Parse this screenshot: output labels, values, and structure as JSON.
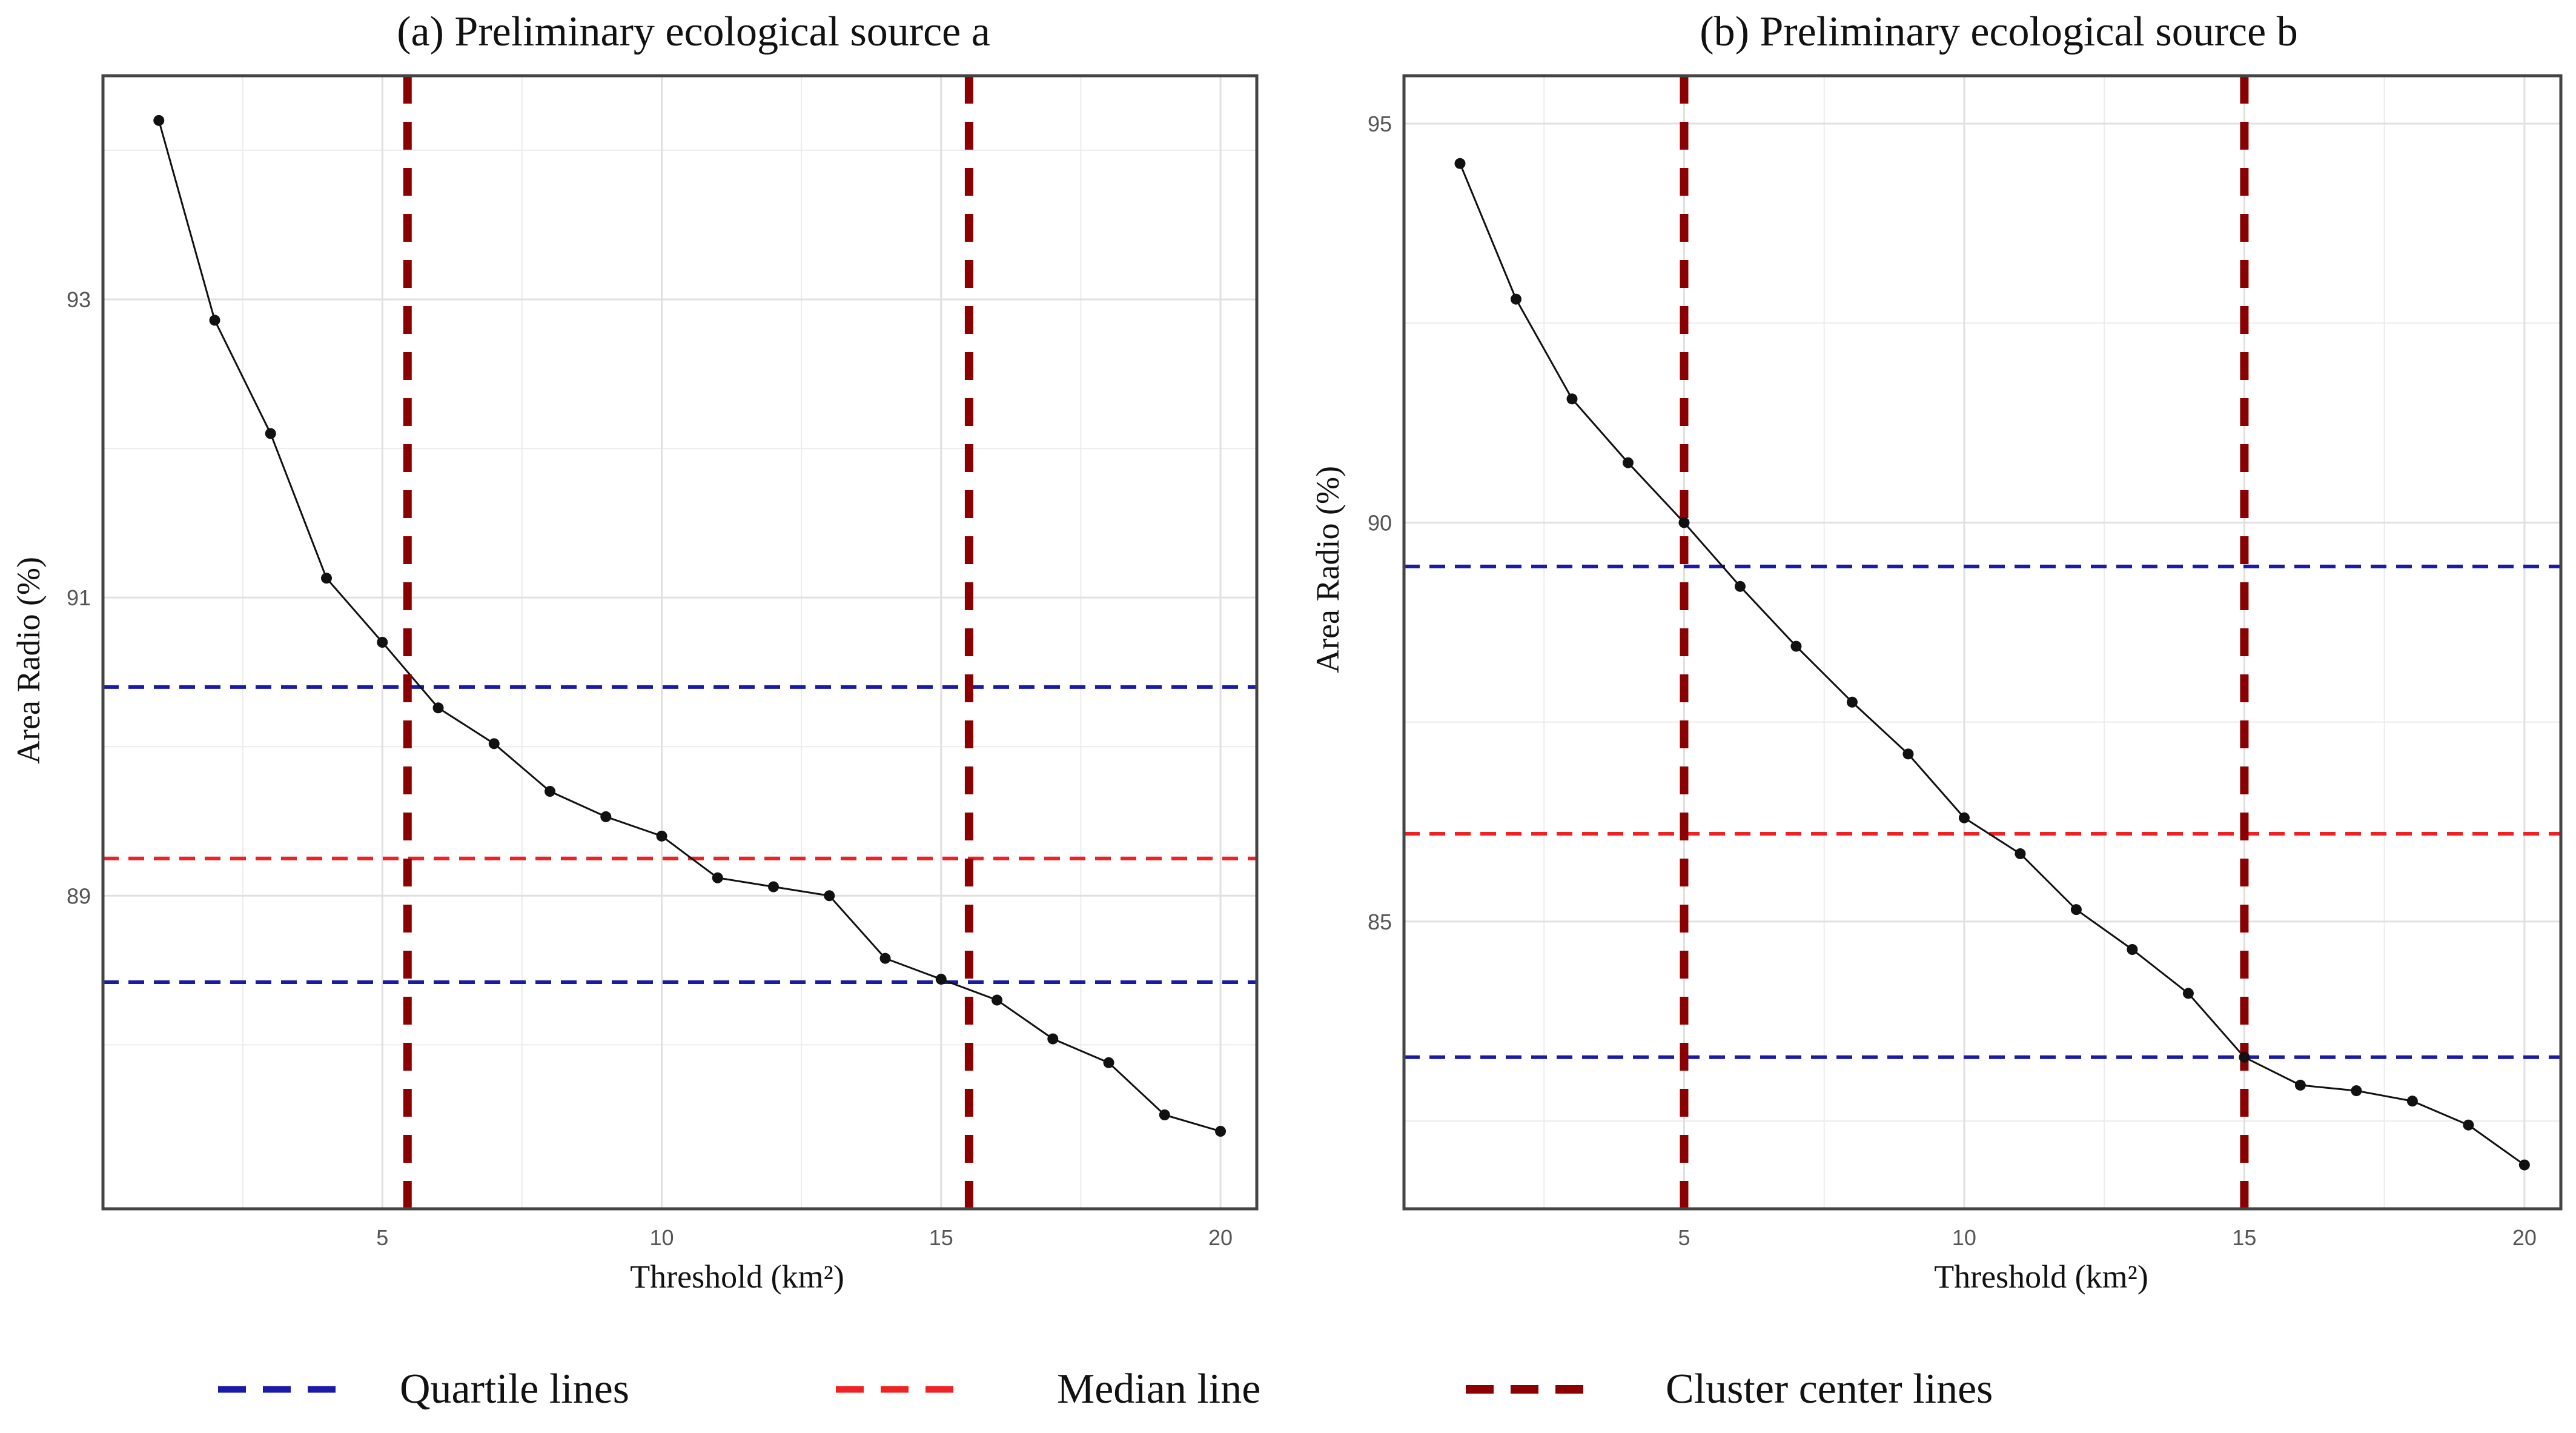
{
  "legend": [
    {
      "label": "Quartile lines",
      "color": "#1a1aa6",
      "style": "dashed"
    },
    {
      "label": "Median line",
      "color": "#ee2222",
      "style": "dashed"
    },
    {
      "label": "Cluster center lines",
      "color": "#8b0000",
      "style": "dashed"
    }
  ],
  "chart_data": [
    {
      "type": "line",
      "title": "(a) Preliminary ecological source a",
      "xlabel": "Threshold (km²)",
      "ylabel": "Area Radio (%)",
      "x": [
        1,
        2,
        3,
        4,
        5,
        6,
        7,
        8,
        9,
        10,
        11,
        12,
        13,
        14,
        15,
        16,
        17,
        18,
        19,
        20
      ],
      "values": [
        94.2,
        92.86,
        92.1,
        91.13,
        90.7,
        90.26,
        90.02,
        89.7,
        89.53,
        89.4,
        89.12,
        89.06,
        89.0,
        88.58,
        88.44,
        88.3,
        88.04,
        87.88,
        87.53,
        87.42
      ],
      "xlim": [
        0,
        20.65
      ],
      "ylim": [
        86.9,
        94.5
      ],
      "xticks": [
        5,
        10,
        15,
        20
      ],
      "yticks": [
        89,
        91,
        93
      ],
      "yminor": [
        88,
        90,
        92,
        94
      ],
      "xminor": [
        2.5,
        7.5,
        12.5,
        17.5
      ],
      "quartile_lines": [
        90.4,
        88.42
      ],
      "median_line": 89.25,
      "cluster_center_lines": [
        5.45,
        15.5
      ],
      "grid": true
    },
    {
      "type": "line",
      "title": "(b) Preliminary ecological source b",
      "xlabel": "Threshold (km²)",
      "ylabel": "Area Radio (%)",
      "x": [
        1,
        2,
        3,
        4,
        5,
        6,
        7,
        8,
        9,
        10,
        11,
        12,
        13,
        14,
        15,
        16,
        17,
        18,
        19,
        20
      ],
      "values": [
        94.5,
        92.8,
        91.55,
        90.75,
        90.0,
        89.2,
        88.45,
        87.75,
        87.1,
        86.3,
        85.85,
        85.15,
        84.65,
        84.1,
        83.3,
        82.95,
        82.88,
        82.75,
        82.45,
        81.95
      ],
      "xlim": [
        0,
        20.65
      ],
      "ylim": [
        81.4,
        95.6
      ],
      "xticks": [
        5,
        10,
        15,
        20
      ],
      "yticks": [
        85,
        90,
        95
      ],
      "yminor": [
        82.5,
        87.5,
        92.5
      ],
      "xminor": [
        2.5,
        7.5,
        12.5,
        17.5
      ],
      "quartile_lines": [
        89.45,
        83.3
      ],
      "median_line": 86.1,
      "cluster_center_lines": [
        5,
        15
      ],
      "grid": true
    }
  ]
}
